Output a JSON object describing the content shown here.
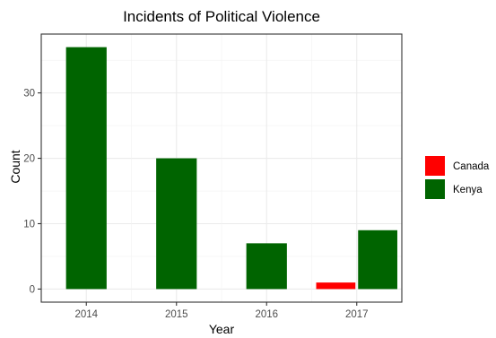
{
  "chart_data": {
    "type": "bar",
    "title": "Incidents of Political Violence",
    "xlabel": "Year",
    "ylabel": "Count",
    "categories": [
      "2014",
      "2015",
      "2016",
      "2017"
    ],
    "series": [
      {
        "name": "Canada",
        "color": "#ff0000",
        "values": [
          null,
          null,
          null,
          1
        ]
      },
      {
        "name": "Kenya",
        "color": "#006400",
        "values": [
          37,
          20,
          7,
          9
        ]
      }
    ],
    "ylim": [
      -2,
      39
    ],
    "yticks": [
      0,
      10,
      20,
      30
    ],
    "grid": true,
    "legend_position": "right"
  }
}
